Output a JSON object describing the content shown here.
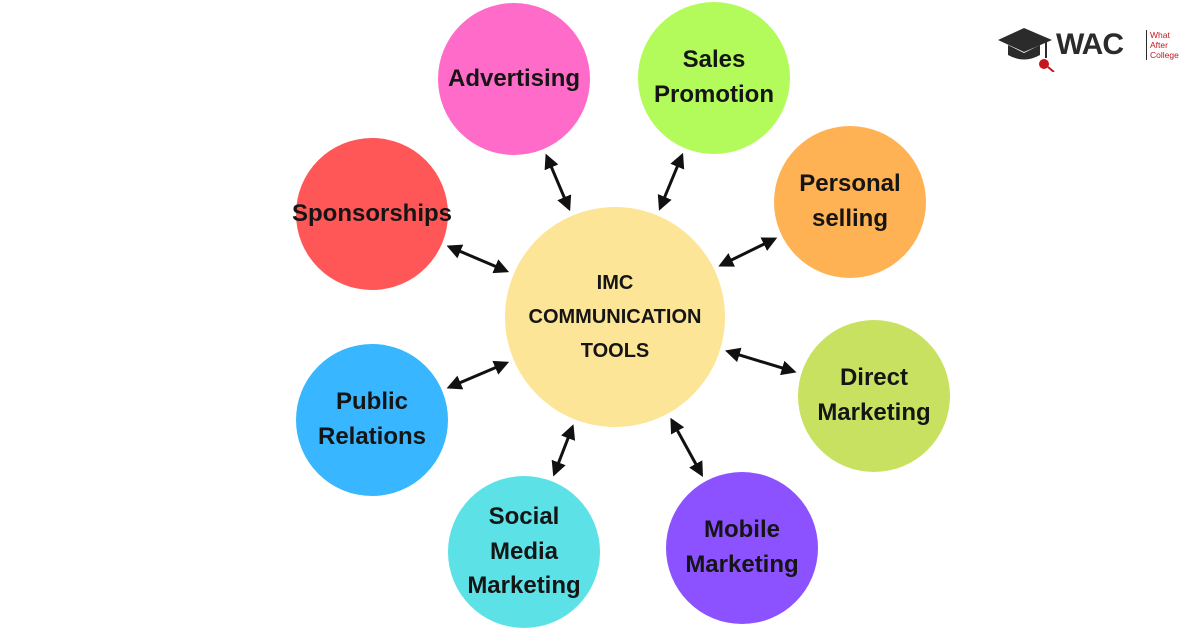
{
  "logo": {
    "text": "WAC",
    "tagline": "What\nAfter\nCollege"
  },
  "center": {
    "label": "IMC\nCOMMUNICATION\nTOOLS",
    "color": "#fde597"
  },
  "nodes": [
    {
      "id": "advertising",
      "label": "Advertising",
      "color": "#ff6bc8"
    },
    {
      "id": "sales-promotion",
      "label": "Sales\nPromotion",
      "color": "#b3fb5a"
    },
    {
      "id": "personal-selling",
      "label": "Personal\nselling",
      "color": "#ffb254"
    },
    {
      "id": "direct-marketing",
      "label": "Direct\nMarketing",
      "color": "#c9e160"
    },
    {
      "id": "mobile-marketing",
      "label": "Mobile\nMarketing",
      "color": "#8c52ff"
    },
    {
      "id": "social-media-marketing",
      "label": "Social\nMedia\nMarketing",
      "color": "#5ce1e6"
    },
    {
      "id": "public-relations",
      "label": "Public\nRelations",
      "color": "#38b6ff"
    },
    {
      "id": "sponsorships",
      "label": "Sponsorships",
      "color": "#ff5757"
    }
  ],
  "colors": {
    "arrow": "#111111",
    "logo_accent": "#c4161c"
  },
  "icons": {
    "logo": "graduation-cap-icon"
  }
}
